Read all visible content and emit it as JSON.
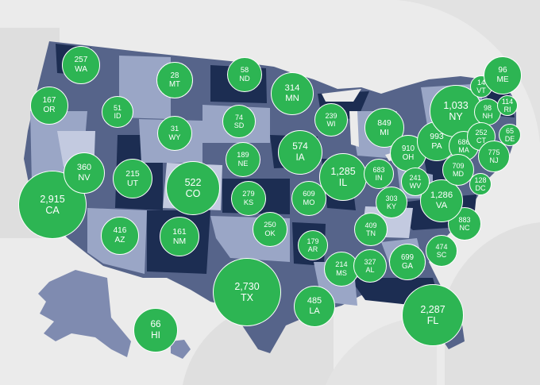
{
  "colors": {
    "background": "#ebebeb",
    "deco": "#dcdcdc",
    "bubble": "#2db553",
    "shade_dark": "#1c2d52",
    "shade_mid": "#56648a",
    "shade_light": "#9aa6c6",
    "shade_pale": "#c3cae0"
  },
  "states": [
    {
      "abbr": "WA",
      "value": "257"
    },
    {
      "abbr": "OR",
      "value": "167"
    },
    {
      "abbr": "CA",
      "value": "2,915"
    },
    {
      "abbr": "NV",
      "value": "360"
    },
    {
      "abbr": "ID",
      "value": "51"
    },
    {
      "abbr": "MT",
      "value": "28"
    },
    {
      "abbr": "WY",
      "value": "31"
    },
    {
      "abbr": "UT",
      "value": "215"
    },
    {
      "abbr": "AZ",
      "value": "416"
    },
    {
      "abbr": "CO",
      "value": "522"
    },
    {
      "abbr": "NM",
      "value": "161"
    },
    {
      "abbr": "ND",
      "value": "58"
    },
    {
      "abbr": "SD",
      "value": "74"
    },
    {
      "abbr": "NE",
      "value": "189"
    },
    {
      "abbr": "KS",
      "value": "279"
    },
    {
      "abbr": "OK",
      "value": "250"
    },
    {
      "abbr": "TX",
      "value": "2,730"
    },
    {
      "abbr": "MN",
      "value": "314"
    },
    {
      "abbr": "IA",
      "value": "574"
    },
    {
      "abbr": "MO",
      "value": "609"
    },
    {
      "abbr": "AR",
      "value": "179"
    },
    {
      "abbr": "LA",
      "value": "485"
    },
    {
      "abbr": "WI",
      "value": "239"
    },
    {
      "abbr": "IL",
      "value": "1,285"
    },
    {
      "abbr": "MI",
      "value": "849"
    },
    {
      "abbr": "IN",
      "value": "683"
    },
    {
      "abbr": "OH",
      "value": "910"
    },
    {
      "abbr": "KY",
      "value": "303"
    },
    {
      "abbr": "TN",
      "value": "409"
    },
    {
      "abbr": "MS",
      "value": "214"
    },
    {
      "abbr": "AL",
      "value": "327"
    },
    {
      "abbr": "GA",
      "value": "699"
    },
    {
      "abbr": "FL",
      "value": "2,287"
    },
    {
      "abbr": "SC",
      "value": "474"
    },
    {
      "abbr": "NC",
      "value": "883"
    },
    {
      "abbr": "VA",
      "value": "1,286"
    },
    {
      "abbr": "WV",
      "value": "241"
    },
    {
      "abbr": "PA",
      "value": "993"
    },
    {
      "abbr": "NY",
      "value": "1,033"
    },
    {
      "abbr": "VT",
      "value": "14"
    },
    {
      "abbr": "NH",
      "value": "98"
    },
    {
      "abbr": "ME",
      "value": "96"
    },
    {
      "abbr": "MA",
      "value": "686"
    },
    {
      "abbr": "RI",
      "value": "114"
    },
    {
      "abbr": "CT",
      "value": "252"
    },
    {
      "abbr": "NJ",
      "value": "775"
    },
    {
      "abbr": "DE",
      "value": "65"
    },
    {
      "abbr": "MD",
      "value": "709"
    },
    {
      "abbr": "DC",
      "value": "128"
    },
    {
      "abbr": "HI",
      "value": "66"
    }
  ]
}
